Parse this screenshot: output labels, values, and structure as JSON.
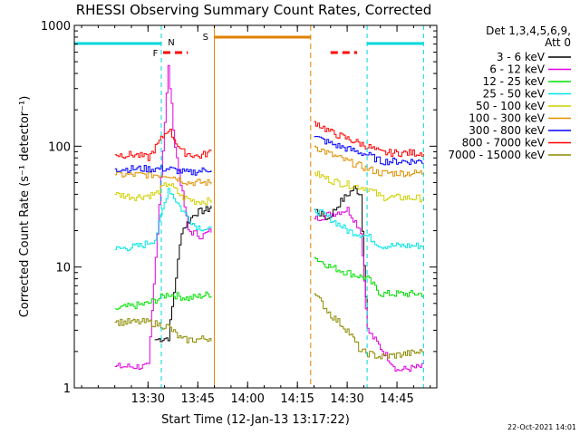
{
  "chart_data": {
    "type": "line",
    "title": "RHESSI Observing Summary Count Rates, Corrected",
    "xlabel": "Start Time (12-Jan-13 13:17:22)",
    "ylabel": "Corrected Count Rate (s⁻¹ detector⁻¹)",
    "yscale": "log",
    "ylim": [
      1,
      1000
    ],
    "xlim_minutes": [
      13.13,
      14.95
    ],
    "x_ticks": [
      "13:30",
      "13:45",
      "14:00",
      "14:15",
      "14:30",
      "14:45"
    ],
    "y_ticks": [
      "1",
      "10",
      "100",
      "1000"
    ],
    "legend_header": [
      "Det 1,3,4,5,6,9,",
      "Att 0"
    ],
    "legend_placement": "right",
    "timestamp": "22-Oct-2021 14:01",
    "flags": {
      "night_label": "N",
      "flare_label": "F",
      "saa_label": "S"
    },
    "gaps": [
      {
        "kind": "saa",
        "start": "13:50",
        "end": "14:19"
      }
    ],
    "night_markers": [
      "13:34",
      "14:36",
      "14:53"
    ],
    "series": [
      {
        "name": "3 - 6 keV",
        "color": "#000000",
        "x": [
          "13:32",
          "13:36",
          "13:40",
          "13:44",
          "13:48",
          "13:49",
          "14:20",
          "14:24",
          "14:28",
          "14:32",
          "14:34",
          "14:36"
        ],
        "values": [
          2.5,
          2.6,
          20,
          28,
          30,
          32,
          30,
          25,
          35,
          45,
          40,
          3
        ]
      },
      {
        "name": "6 - 12 keV",
        "color": "#e000e0",
        "x": [
          "13:20",
          "13:25",
          "13:30",
          "13:36",
          "13:38",
          "13:42",
          "13:46",
          "13:49",
          "14:20",
          "14:26",
          "14:30",
          "14:34",
          "14:36",
          "14:45",
          "14:53"
        ],
        "values": [
          1.5,
          1.5,
          1.5,
          450,
          100,
          20,
          18,
          20,
          25,
          28,
          30,
          20,
          3,
          1.4,
          1.5
        ]
      },
      {
        "name": "12 - 25 keV",
        "color": "#00e000",
        "x": [
          "13:20",
          "13:30",
          "13:36",
          "13:42",
          "13:49",
          "14:20",
          "14:25",
          "14:30",
          "14:36",
          "14:40",
          "14:53"
        ],
        "values": [
          4.5,
          5,
          6,
          5.5,
          6,
          12,
          10,
          9,
          8,
          6,
          6
        ]
      },
      {
        "name": "25 - 50 keV",
        "color": "#00e5e5",
        "x": [
          "13:20",
          "13:28",
          "13:32",
          "13:36",
          "13:40",
          "13:44",
          "13:49",
          "14:20",
          "14:25",
          "14:30",
          "14:36",
          "14:40",
          "14:53"
        ],
        "values": [
          14,
          15,
          17,
          45,
          30,
          22,
          20,
          30,
          25,
          20,
          18,
          15,
          15
        ]
      },
      {
        "name": "50 - 100 keV",
        "color": "#d0d000",
        "x": [
          "13:20",
          "13:26",
          "13:32",
          "13:36",
          "13:40",
          "13:44",
          "13:49",
          "14:20",
          "14:25",
          "14:30",
          "14:36",
          "14:40",
          "14:53"
        ],
        "values": [
          40,
          38,
          40,
          50,
          38,
          35,
          35,
          60,
          52,
          48,
          45,
          38,
          37
        ]
      },
      {
        "name": "100 - 300 keV",
        "color": "#e09000",
        "x": [
          "13:20",
          "13:30",
          "13:36",
          "13:42",
          "13:49",
          "14:20",
          "14:25",
          "14:30",
          "14:36",
          "14:40",
          "14:53"
        ],
        "values": [
          58,
          58,
          58,
          50,
          50,
          100,
          85,
          75,
          65,
          60,
          60
        ]
      },
      {
        "name": "300 - 800 keV",
        "color": "#0000ff",
        "x": [
          "13:20",
          "13:30",
          "13:36",
          "13:42",
          "13:49",
          "14:20",
          "14:25",
          "14:30",
          "14:36",
          "14:40",
          "14:53"
        ],
        "values": [
          65,
          65,
          65,
          60,
          65,
          120,
          105,
          95,
          85,
          75,
          75
        ]
      },
      {
        "name": "800 - 7000 keV",
        "color": "#ff0000",
        "x": [
          "13:20",
          "13:26",
          "13:30",
          "13:36",
          "13:40",
          "13:45",
          "13:49",
          "14:20",
          "14:25",
          "14:30",
          "14:36",
          "14:40",
          "14:53"
        ],
        "values": [
          85,
          85,
          80,
          140,
          90,
          82,
          90,
          160,
          130,
          115,
          100,
          88,
          88
        ]
      },
      {
        "name": "7000 - 15000 keV",
        "color": "#8b8b00",
        "x": [
          "13:20",
          "13:30",
          "13:36",
          "13:40",
          "13:44",
          "13:49",
          "14:20",
          "14:25",
          "14:30",
          "14:34",
          "14:40",
          "14:53"
        ],
        "values": [
          3.5,
          3.5,
          3.2,
          2.5,
          2.5,
          2.6,
          6,
          4,
          3,
          2,
          1.8,
          2
        ]
      }
    ]
  }
}
